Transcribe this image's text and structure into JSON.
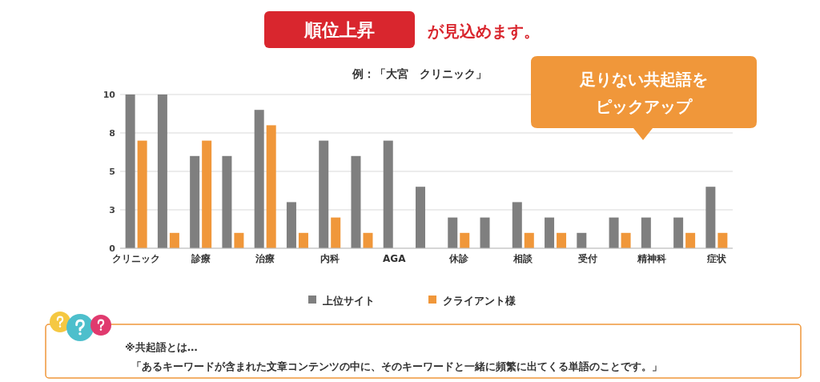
{
  "chart_data": {
    "type": "bar",
    "title": "例：「大宮　クリニック」",
    "annotations": [
      "順位上昇",
      "が見込めます。",
      "足りない共起語を",
      "ピックアップ",
      "※共起語とは…",
      "「あるキーワードが含まれた文章コンテンツの中に、そのキーワードと一緒に頻繁に出てくる単語のことです。」"
    ],
    "categories": [
      "クリニック",
      null,
      "診療",
      null,
      "治療",
      null,
      "内科",
      null,
      "AGA",
      null,
      "休診",
      null,
      "相談",
      null,
      "受付",
      null,
      "精神科",
      null,
      "症状"
    ],
    "series": [
      {
        "name": "上位サイト",
        "color": "#7f7f7f",
        "values": [
          10,
          10,
          6,
          6,
          9,
          3,
          7,
          6,
          7,
          4,
          2,
          2,
          3,
          2,
          1,
          2,
          2,
          2,
          4
        ]
      },
      {
        "name": "クライアント様",
        "color": "#f0973a",
        "values": [
          7,
          1,
          7,
          1,
          8,
          1,
          2,
          1,
          null,
          null,
          1,
          null,
          1,
          1,
          null,
          1,
          null,
          1,
          1
        ]
      }
    ],
    "ylim": [
      0,
      10
    ],
    "yticks": [
      0,
      {
        "value": 2.5,
        "label": "3"
      },
      5,
      {
        "value": 7.5,
        "label": "8"
      },
      10
    ],
    "grid": "y",
    "legend": "bottom"
  }
}
